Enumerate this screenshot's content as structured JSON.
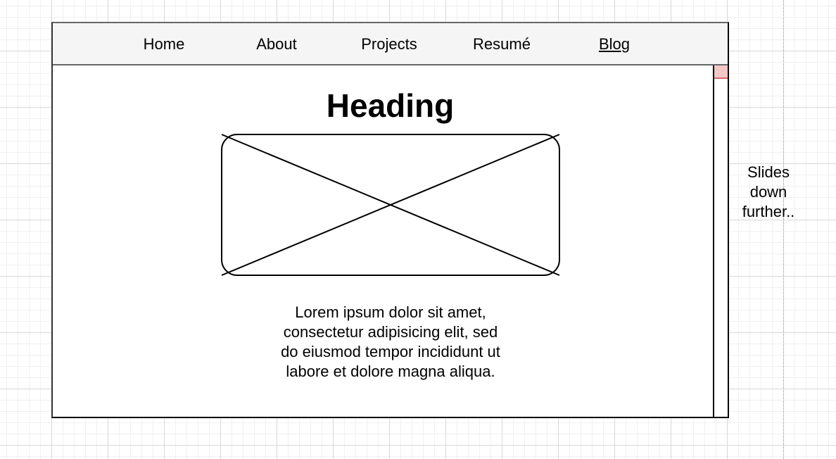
{
  "nav": {
    "items": [
      {
        "label": "Home",
        "active": false
      },
      {
        "label": "About",
        "active": false
      },
      {
        "label": "Projects",
        "active": false
      },
      {
        "label": "Resumé",
        "active": false
      },
      {
        "label": "Blog",
        "active": true
      }
    ]
  },
  "main": {
    "heading": "Heading",
    "image_icon": "image-placeholder-icon",
    "body_lines": [
      "Lorem ipsum dolor sit amet,",
      "consectetur adipisicing elit, sed",
      "do eiusmod tempor incididunt ut",
      "labore et dolore magna aliqua."
    ]
  },
  "scrollbar": {
    "position_fraction": 0,
    "thumb_color": "#f4c7c7"
  },
  "annotation": {
    "lines": [
      "Slides",
      "down",
      "further.."
    ]
  }
}
